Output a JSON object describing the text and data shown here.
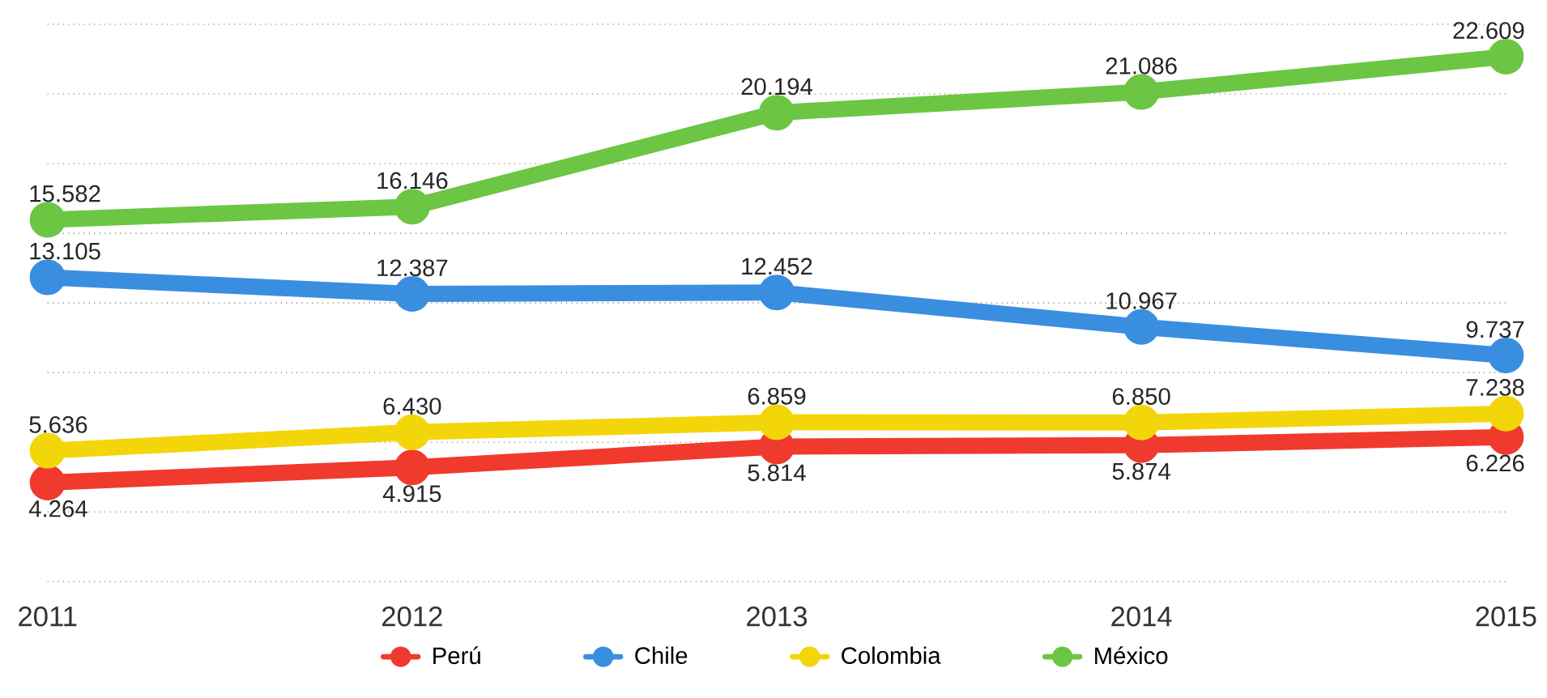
{
  "chart_data": {
    "type": "line",
    "x": [
      2011,
      2012,
      2013,
      2014,
      2015
    ],
    "xlim": [
      2011,
      2015
    ],
    "xticks": [
      2011,
      2012,
      2013,
      2014,
      2015
    ],
    "ylim": [
      0,
      24
    ],
    "yticks": [
      {
        "value": 0,
        "label": null
      },
      {
        "value": 3,
        "label": null
      },
      {
        "value": 6,
        "label": null
      },
      {
        "value": 9,
        "label": null
      },
      {
        "value": 12,
        "label": null
      },
      {
        "value": 15,
        "label": null
      },
      {
        "value": 18,
        "label": null
      },
      {
        "value": 21,
        "label": null
      },
      {
        "value": 24,
        "label": null
      }
    ],
    "tick_labels": "x",
    "grid": "y",
    "legend": "bottom",
    "marker": "circle",
    "line_style": "solid",
    "series": [
      {
        "name": "Perú",
        "color": "#f03a2e",
        "values": [
          4.264,
          4.915,
          5.814,
          5.874,
          6.226
        ],
        "value_labels": [
          "4.264",
          "4.915",
          "5.814",
          "5.874",
          "6.226"
        ]
      },
      {
        "name": "Chile",
        "color": "#3a8ee0",
        "values": [
          13.105,
          12.387,
          12.452,
          10.967,
          9.737
        ],
        "value_labels": [
          "13.105",
          "12.387",
          "12.452",
          "10.967",
          "9.737"
        ]
      },
      {
        "name": "Colombia",
        "color": "#f2d60a",
        "values": [
          5.636,
          6.43,
          6.859,
          6.85,
          7.238
        ],
        "value_labels": [
          "5.636",
          "6.430",
          "6.859",
          "6.850",
          "7.238"
        ]
      },
      {
        "name": "México",
        "color": "#6cc644",
        "values": [
          15.582,
          16.146,
          20.194,
          21.086,
          22.609
        ],
        "value_labels": [
          "15.582",
          "16.146",
          "20.194",
          "21.086",
          "22.609"
        ]
      }
    ]
  }
}
